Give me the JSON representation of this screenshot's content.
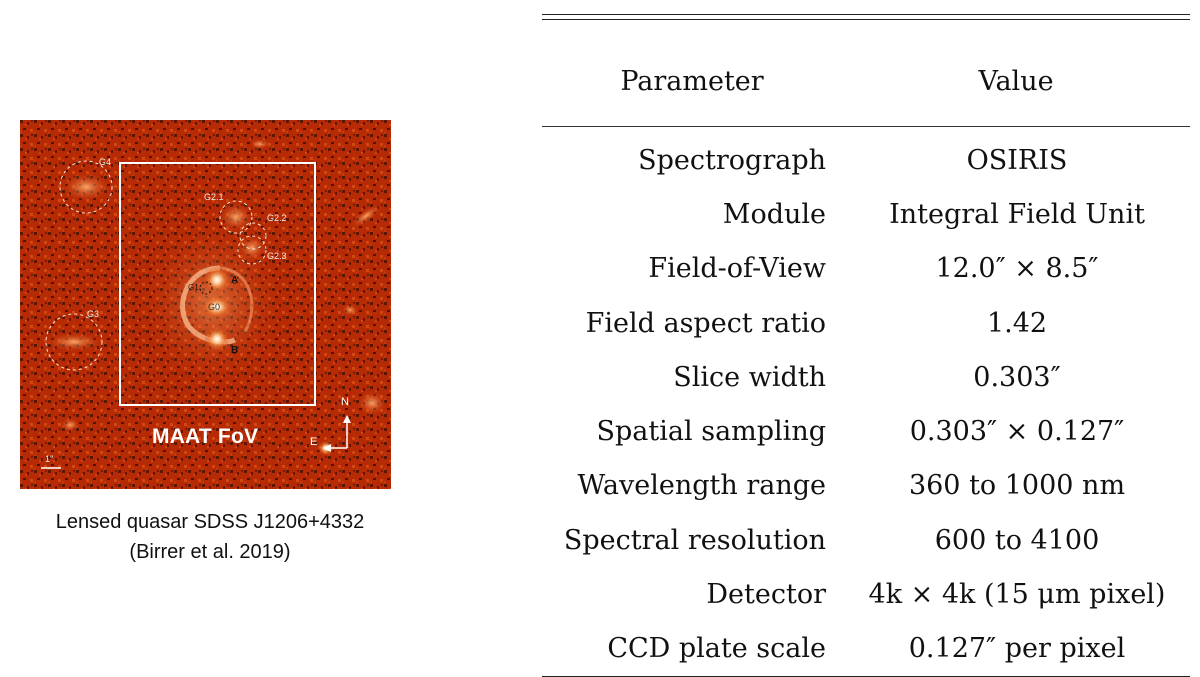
{
  "figure": {
    "fov_label": "MAAT FoV",
    "scale_bar": "1\"",
    "labels": {
      "g4": "G4",
      "g2_1": "G2.1",
      "g2_2": "G2.2",
      "g2_3": "G2.3",
      "g1": "G1",
      "a": "A",
      "g0": "G0",
      "g3": "G3",
      "b": "B"
    },
    "compass": {
      "north": "N",
      "east": "E"
    },
    "caption_line1": "Lensed quasar SDSS J1206+4332",
    "caption_line2": "(Birrer et al. 2019)"
  },
  "table": {
    "headers": [
      "Parameter",
      "Value"
    ],
    "rows": [
      {
        "parameter": "Spectrograph",
        "value": "OSIRIS"
      },
      {
        "parameter": "Module",
        "value": "Integral Field Unit"
      },
      {
        "parameter": "Field-of-View",
        "value": "12.0″ × 8.5″"
      },
      {
        "parameter": "Field aspect ratio",
        "value": "1.42"
      },
      {
        "parameter": "Slice width",
        "value": "0.303″"
      },
      {
        "parameter": "Spatial sampling",
        "value": "0.303″ × 0.127″"
      },
      {
        "parameter": "Wavelength range",
        "value": "360 to 1000 nm"
      },
      {
        "parameter": "Spectral resolution",
        "value": "600 to 4100"
      },
      {
        "parameter": "Detector",
        "value": "4k × 4k (15 μm pixel)"
      },
      {
        "parameter": "CCD plate scale",
        "value": "0.127″ per pixel"
      }
    ]
  }
}
